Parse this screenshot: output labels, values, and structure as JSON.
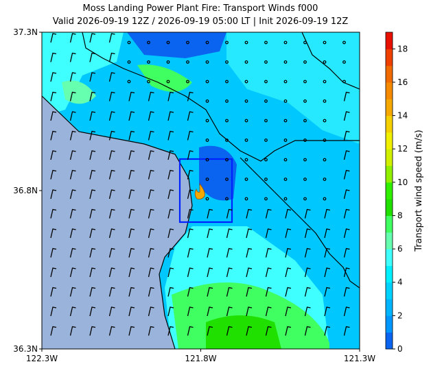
{
  "map": {
    "title": "Moss Landing Power Plant Fire: Transport Winds f000",
    "subtitle": "Valid 2026-09-19 12Z / 2026-09-19 05:00 LT | Init 2026-09-19 12Z",
    "xlim": [
      -122.3,
      -121.3
    ],
    "ylim": [
      36.3,
      37.3
    ],
    "xticks": [
      {
        "value": -122.3,
        "label": "122.3W"
      },
      {
        "value": -121.8,
        "label": "121.8W"
      },
      {
        "value": -121.3,
        "label": "121.3W"
      }
    ],
    "yticks": [
      {
        "value": 36.3,
        "label": "36.3N"
      },
      {
        "value": 36.8,
        "label": "36.8N"
      },
      {
        "value": 37.3,
        "label": "37.3N"
      }
    ]
  },
  "colorbar": {
    "label": "Transport wind speed (m/s)",
    "lim": [
      0,
      19
    ],
    "ticks": [
      0,
      2,
      4,
      6,
      8,
      10,
      12,
      14,
      16,
      18
    ],
    "colors": [
      "#0a64f0",
      "#0096ff",
      "#00b4ff",
      "#00d2ff",
      "#00f0ff",
      "#40ffff",
      "#66ffb0",
      "#40ff60",
      "#20e000",
      "#30f000",
      "#90f000",
      "#d0f000",
      "#f0f000",
      "#f5d000",
      "#f5a800",
      "#f58a00",
      "#f06a00",
      "#f04000",
      "#e81000"
    ]
  }
}
